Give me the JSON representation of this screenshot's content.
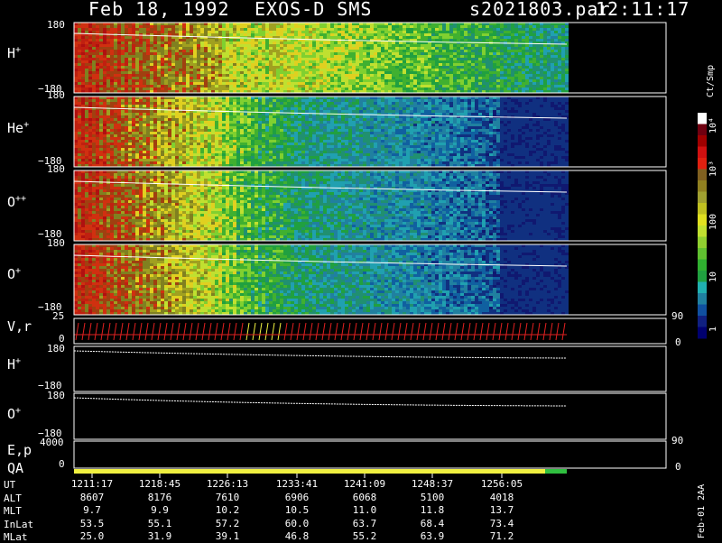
{
  "header": {
    "date": "Feb 18, 1992",
    "instrument": "EXOS-D SMS",
    "file": "s2021803.par",
    "time": "12:11:17"
  },
  "colors": {
    "background": "#000000",
    "axis": "#ffffff",
    "qa_bar": "#f0f040",
    "qa_end": "#30c040",
    "vr_ticks": "#e02020",
    "vr_highlight": "#f0f040"
  },
  "panels": [
    {
      "label": "H",
      "charge": "+",
      "y_top": "180",
      "y_bottom": "−180",
      "trend": "warm"
    },
    {
      "label": "He",
      "charge": "+",
      "y_top": "180",
      "y_bottom": "−180",
      "trend": "cool"
    },
    {
      "label": "O",
      "charge": "++",
      "y_top": "180",
      "y_bottom": "−180",
      "trend": "cool"
    },
    {
      "label": "O",
      "charge": "+",
      "y_top": "180",
      "y_bottom": "−180",
      "trend": "cool"
    }
  ],
  "vr_panel": {
    "label": "V,r",
    "y_top": "25",
    "y_bottom": "0",
    "right_top": "90",
    "right_bottom": "0"
  },
  "line_panels": [
    {
      "label": "H",
      "charge": "+",
      "y_top": "180",
      "y_bottom": "−180"
    },
    {
      "label": "O",
      "charge": "+",
      "y_top": "180",
      "y_bottom": "−180"
    }
  ],
  "ep_panel": {
    "label": "E,p",
    "y_top": "4000",
    "y_bottom": "0",
    "right_top": "90",
    "right_bottom": "0"
  },
  "qa_label": "QA",
  "colorbar": {
    "unit": "Ct/Smp",
    "labels": [
      "10⁴",
      "10³",
      "100",
      "10",
      "1"
    ],
    "colors": [
      "#ffffff",
      "#700010",
      "#a00000",
      "#d01010",
      "#e02010",
      "#806020",
      "#908020",
      "#a0a030",
      "#c0c020",
      "#e0e020",
      "#c0e030",
      "#90d030",
      "#60c030",
      "#30b030",
      "#20a040",
      "#20b0b0",
      "#2080a0",
      "#1050a0",
      "#102080",
      "#000070"
    ]
  },
  "chart_data": {
    "type": "heatmap",
    "title": "Feb 18, 1992   EXOS-D SMS",
    "x_axis": "UT",
    "ephemeris_rows": [
      "UT",
      "ALT",
      "MLT",
      "InLat",
      "MLat"
    ],
    "ephemeris": [
      {
        "UT": "1211:17",
        "ALT": "8607",
        "MLT": "9.7",
        "InLat": "53.5",
        "MLat": "25.0"
      },
      {
        "UT": "1218:45",
        "ALT": "8176",
        "MLT": "9.9",
        "InLat": "55.1",
        "MLat": "31.9"
      },
      {
        "UT": "1226:13",
        "ALT": "7610",
        "MLT": "10.2",
        "InLat": "57.2",
        "MLat": "39.1"
      },
      {
        "UT": "1233:41",
        "ALT": "6906",
        "MLT": "10.5",
        "InLat": "60.0",
        "MLat": "46.8"
      },
      {
        "UT": "1241:09",
        "ALT": "6068",
        "MLT": "11.0",
        "InLat": "63.7",
        "MLat": "55.2"
      },
      {
        "UT": "1248:37",
        "ALT": "5100",
        "MLT": "11.8",
        "InLat": "68.4",
        "MLat": "63.9"
      },
      {
        "UT": "1256:05",
        "ALT": "4018",
        "MLT": "13.7",
        "InLat": "73.4",
        "MLat": "71.2"
      }
    ],
    "colorbar_unit": "Ct/Smp",
    "colorbar_scale": "log",
    "colorbar_range": [
      1,
      10000
    ]
  },
  "side_note": "Feb-01 2AA"
}
